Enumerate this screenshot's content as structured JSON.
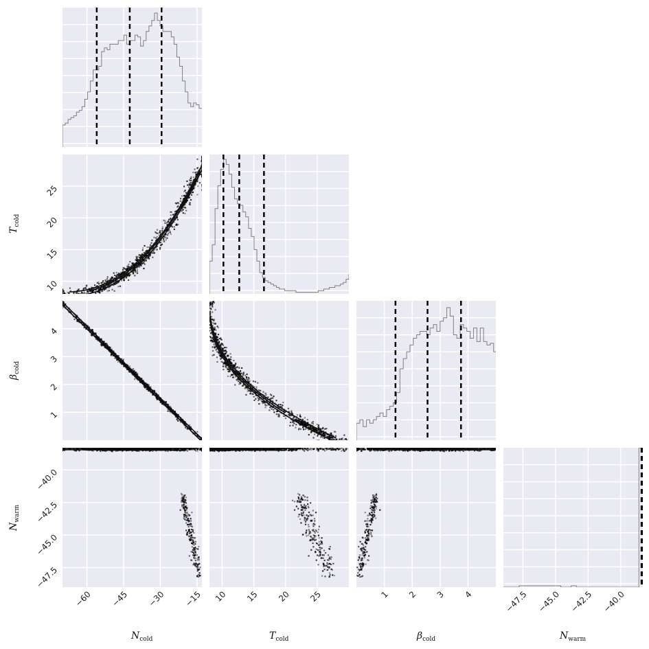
{
  "chart_data": {
    "type": "corner",
    "title": "",
    "parameters": [
      {
        "key": "N_cold",
        "symbol": "N",
        "subscript": "cold",
        "range": [
          -70,
          -13
        ],
        "ticks": [
          -60,
          -45,
          -30,
          -15
        ],
        "tick_labels": [
          "−60",
          "−45",
          "−30",
          "−15"
        ],
        "quantiles": [
          -56,
          -42.5,
          -29.5
        ]
      },
      {
        "key": "T_cold",
        "symbol": "T",
        "subscript": "cold",
        "range": [
          8,
          30
        ],
        "ticks": [
          10,
          15,
          20,
          25
        ],
        "tick_labels": [
          "10",
          "15",
          "20",
          "25"
        ],
        "quantiles": [
          10.2,
          12.7,
          16.6
        ]
      },
      {
        "key": "beta_cold",
        "symbol": "β",
        "subscript": "cold",
        "range": [
          0,
          5
        ],
        "ticks": [
          1,
          2,
          3,
          4
        ],
        "tick_labels": [
          "1",
          "2",
          "3",
          "4"
        ],
        "quantiles": [
          1.4,
          2.55,
          3.75
        ]
      },
      {
        "key": "N_warm",
        "symbol": "N",
        "subscript": "warm",
        "range": [
          -49,
          -38.3
        ],
        "ticks": [
          -47.5,
          -45.0,
          -42.5,
          -40.0
        ],
        "tick_labels": [
          "−47.5",
          "−45.0",
          "−42.5",
          "−40.0"
        ],
        "quantiles": [
          -38.4,
          -38.35,
          -38.32
        ]
      }
    ],
    "hist_N_cold": {
      "bin_edges_start": -70,
      "bin_width": 1.14,
      "counts": [
        12,
        13,
        15,
        16,
        17,
        19,
        20,
        22,
        26,
        30,
        36,
        42,
        42,
        44,
        52,
        54,
        53,
        56,
        56,
        56,
        58,
        58,
        61,
        56,
        58,
        58,
        61,
        60,
        55,
        58,
        63,
        66,
        69,
        73,
        69,
        66,
        63,
        63,
        63,
        60,
        56,
        49,
        44,
        36,
        30,
        24,
        22,
        24,
        23,
        21,
        21,
        19,
        19,
        18,
        16,
        16,
        14,
        14,
        16,
        14,
        12,
        12,
        11,
        10,
        10,
        12,
        9,
        9,
        9,
        9,
        8,
        7,
        7,
        7,
        7,
        6,
        5,
        5,
        4,
        4
      ],
      "ymax": 76
    },
    "hist_T_cold": {
      "bin_edges_start": 8,
      "bin_width": 0.44,
      "counts": [
        20,
        30,
        52,
        66,
        76,
        82,
        79,
        73,
        65,
        58,
        55,
        54,
        50,
        47,
        40,
        35,
        27,
        20,
        13,
        10,
        8,
        7,
        6,
        5,
        4,
        3,
        3,
        2,
        2,
        2,
        2,
        1,
        1,
        1,
        1,
        1,
        1,
        1,
        1,
        2,
        2,
        3,
        3,
        4,
        4,
        5,
        5,
        6,
        7,
        9,
        12,
        11,
        8,
        5
      ],
      "ymax": 85
    },
    "hist_beta_cold": {
      "bin_edges_start": 0,
      "bin_width": 0.12,
      "counts": [
        10,
        12,
        8,
        12,
        10,
        12,
        14,
        16,
        14,
        18,
        20,
        22,
        28,
        42,
        48,
        52,
        56,
        60,
        62,
        64,
        64,
        62,
        66,
        68,
        64,
        70,
        72,
        78,
        73,
        62,
        60,
        68,
        66,
        64,
        60,
        66,
        58,
        66,
        58,
        56,
        57,
        52,
        54,
        48,
        42,
        40,
        32,
        26,
        22,
        18,
        14,
        10
      ],
      "ymax": 82
    },
    "hist_N_warm": {
      "bin_edges_start": -49,
      "bin_width": 0.4,
      "counts": [
        0,
        0,
        0,
        1,
        1,
        1,
        1,
        1,
        1,
        1,
        1,
        0,
        0,
        1,
        0,
        0,
        0,
        0,
        0,
        0,
        0,
        0,
        0,
        0,
        0,
        0,
        500
      ],
      "ymax": 100
    },
    "pairs": [
      {
        "x": "N_cold",
        "y": "T_cold",
        "relation": "T ≈ 8 + 20·((N+70)/57)^2.3"
      },
      {
        "x": "N_cold",
        "y": "beta_cold",
        "relation": "β ≈ 4.9 − 4.9·(N+70)/57"
      },
      {
        "x": "T_cold",
        "y": "beta_cold",
        "relation": "β decreasing convex in T"
      },
      {
        "x": "N_cold",
        "y": "N_warm",
        "relation": "dense at N_warm ≈ −38.4; tail to −48"
      },
      {
        "x": "T_cold",
        "y": "N_warm",
        "relation": "dense at N_warm ≈ −38.4; tail to −48"
      },
      {
        "x": "beta_cold",
        "y": "N_warm",
        "relation": "dense at N_warm ≈ −38.4; tail to −48"
      },
      {
        "x": "N_warm",
        "y": "N_warm",
        "relation": "histogram spike at upper edge"
      }
    ],
    "colors": {
      "axes_bg": "#eaeaf2",
      "grid": "#ffffff",
      "hist": "#7f7f7f",
      "quantile_line": "#000000",
      "contour": "#111111",
      "points": "#000000"
    }
  }
}
